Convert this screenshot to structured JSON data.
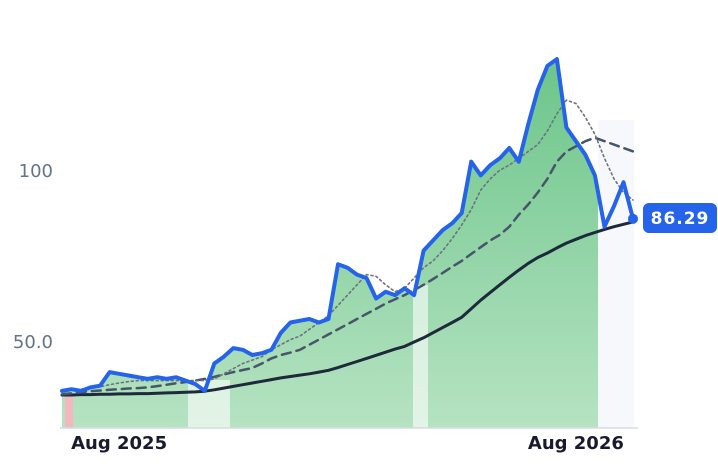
{
  "chart_data": {
    "type": "line",
    "categories": [
      null,
      null,
      null,
      null,
      null,
      null,
      "Aug 2025",
      null,
      null,
      null,
      null,
      null,
      null,
      null,
      null,
      null,
      null,
      null,
      null,
      null,
      null,
      null,
      null,
      null,
      null,
      null,
      null,
      null,
      null,
      null,
      null,
      null,
      null,
      null,
      null,
      null,
      null,
      null,
      null,
      null,
      null,
      null,
      null,
      null,
      null,
      null,
      null,
      null,
      null,
      null,
      null,
      null,
      null,
      null,
      "Aug 2026",
      null,
      null,
      null,
      null,
      null,
      null
    ],
    "series": [
      {
        "color": "#2563eb",
        "style": "solid",
        "width": 4,
        "fill_area": true,
        "values": [
          36,
          36.5,
          36,
          37,
          37.5,
          41.5,
          41,
          40.5,
          40,
          39.5,
          40,
          39.5,
          40,
          39,
          38,
          36,
          44,
          46,
          48.5,
          48,
          46.5,
          47,
          48,
          53,
          56,
          56.5,
          57,
          56,
          57,
          73,
          72,
          70,
          69,
          63,
          65,
          64,
          66,
          64,
          77,
          80,
          83,
          85,
          88,
          103,
          99,
          102,
          104,
          107,
          103,
          114,
          124,
          131,
          133,
          113,
          109,
          105,
          99,
          84,
          90,
          97,
          86.29
        ]
      },
      {
        "color": "#6b7280",
        "style": "dotted",
        "width": 1.6,
        "values": [
          36,
          36.2,
          36.5,
          36.8,
          37.2,
          37.8,
          38.3,
          38.7,
          39,
          39,
          39,
          39,
          39,
          39,
          39,
          39,
          39.5,
          41,
          42.5,
          44,
          45,
          46,
          48,
          49.5,
          51,
          52,
          54,
          56,
          58,
          61,
          64,
          67,
          70,
          69.5,
          67,
          65,
          66,
          69,
          72,
          74,
          77,
          80.5,
          84.5,
          89,
          94.7,
          98,
          100.5,
          102,
          104,
          106,
          108,
          112,
          117,
          121,
          120,
          116,
          111,
          104,
          98,
          94,
          91.8
        ]
      },
      {
        "color": "#475569",
        "style": "dashed",
        "width": 2.5,
        "values": [
          35,
          35.3,
          35.6,
          35.9,
          36.1,
          36.3,
          36.5,
          36.7,
          36.8,
          37,
          37.4,
          37.8,
          38.2,
          38.6,
          39,
          39.5,
          40.1,
          40.8,
          41.5,
          42.1,
          42.7,
          44,
          45.5,
          46.5,
          47.2,
          48,
          49.5,
          51,
          52.5,
          54,
          55.5,
          57,
          58.5,
          60,
          61.5,
          62.8,
          64,
          65.5,
          67,
          68.7,
          70.5,
          72.3,
          74,
          76,
          78,
          80,
          81.6,
          84,
          87.5,
          90.5,
          94,
          98,
          103,
          106,
          107.5,
          109,
          110,
          109,
          108,
          107,
          106
        ]
      },
      {
        "color": "#1e293b",
        "style": "solid",
        "width": 3,
        "values": [
          34.8,
          34.8,
          34.9,
          34.9,
          35,
          35,
          35.1,
          35.1,
          35.2,
          35.2,
          35.3,
          35.4,
          35.5,
          35.6,
          35.7,
          35.9,
          36.3,
          36.8,
          37.3,
          37.8,
          38.3,
          38.8,
          39.3,
          39.8,
          40.2,
          40.6,
          41,
          41.5,
          42,
          42.8,
          43.7,
          44.6,
          45.5,
          46.4,
          47.3,
          48.2,
          49,
          50.3,
          51.5,
          53,
          54.5,
          56,
          57.5,
          60,
          62.5,
          64.8,
          67,
          69.2,
          71.3,
          73.3,
          75,
          76.3,
          77.8,
          79.2,
          80.3,
          81.4,
          82.3,
          83.2,
          84,
          84.7,
          85.4
        ]
      }
    ],
    "ylim": [
      25,
      145
    ],
    "yticks": [
      {
        "value": 50,
        "label": "50.0"
      },
      100
    ],
    "grid": false
  }
}
